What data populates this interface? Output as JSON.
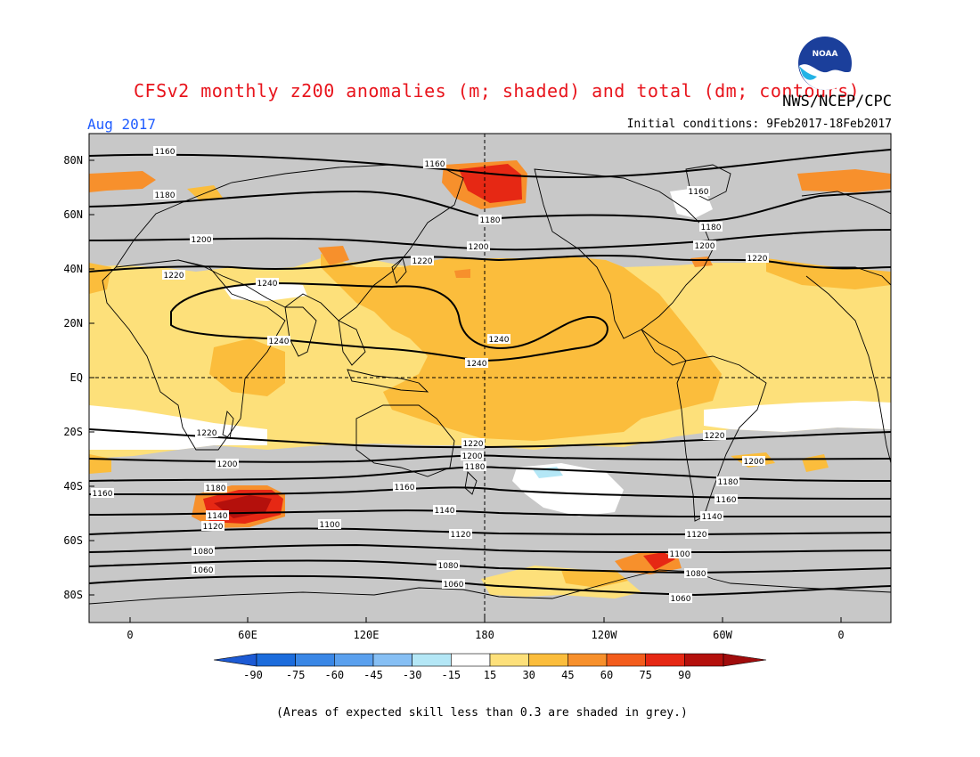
{
  "header": {
    "title": "CFSv2 monthly z200 anomalies (m; shaded) and total (dm; contours)",
    "agency": "NWS/NCEP/CPC",
    "period": "Aug 2017",
    "initial_conditions": "Initial conditions: 9Feb2017-18Feb2017",
    "logo_text": "NOAA"
  },
  "axes": {
    "lat_labels": [
      "80N",
      "60N",
      "40N",
      "20N",
      "EQ",
      "20S",
      "40S",
      "60S",
      "80S"
    ],
    "lon_labels": [
      "0",
      "60E",
      "120E",
      "180",
      "120W",
      "60W",
      "0"
    ]
  },
  "legend": {
    "ticks": [
      "-90",
      "-75",
      "-60",
      "-45",
      "-30",
      "-15",
      "15",
      "30",
      "45",
      "60",
      "75",
      "90"
    ],
    "colors": [
      "#1c6cdc",
      "#3a87e6",
      "#5aa0ee",
      "#86bff4",
      "#b4e7f6",
      "#ffffff",
      "#fde07a",
      "#fbbd3c",
      "#f7902c",
      "#f35c1c",
      "#e62814",
      "#b4100c"
    ],
    "arrow_left_color": "#1c5ad4",
    "arrow_right_color": "#a00c0c"
  },
  "contour_labels": [
    "1240",
    "1220",
    "1200",
    "1180",
    "1160",
    "1140",
    "1120",
    "1100",
    "1080",
    "1060"
  ],
  "colors": {
    "low_skill_grey": "#c8c8c8",
    "title_red": "#e8141c",
    "period_blue": "#1f5cff"
  },
  "footnote": "(Areas of expected skill less than 0.3 are shaded in grey.)"
}
